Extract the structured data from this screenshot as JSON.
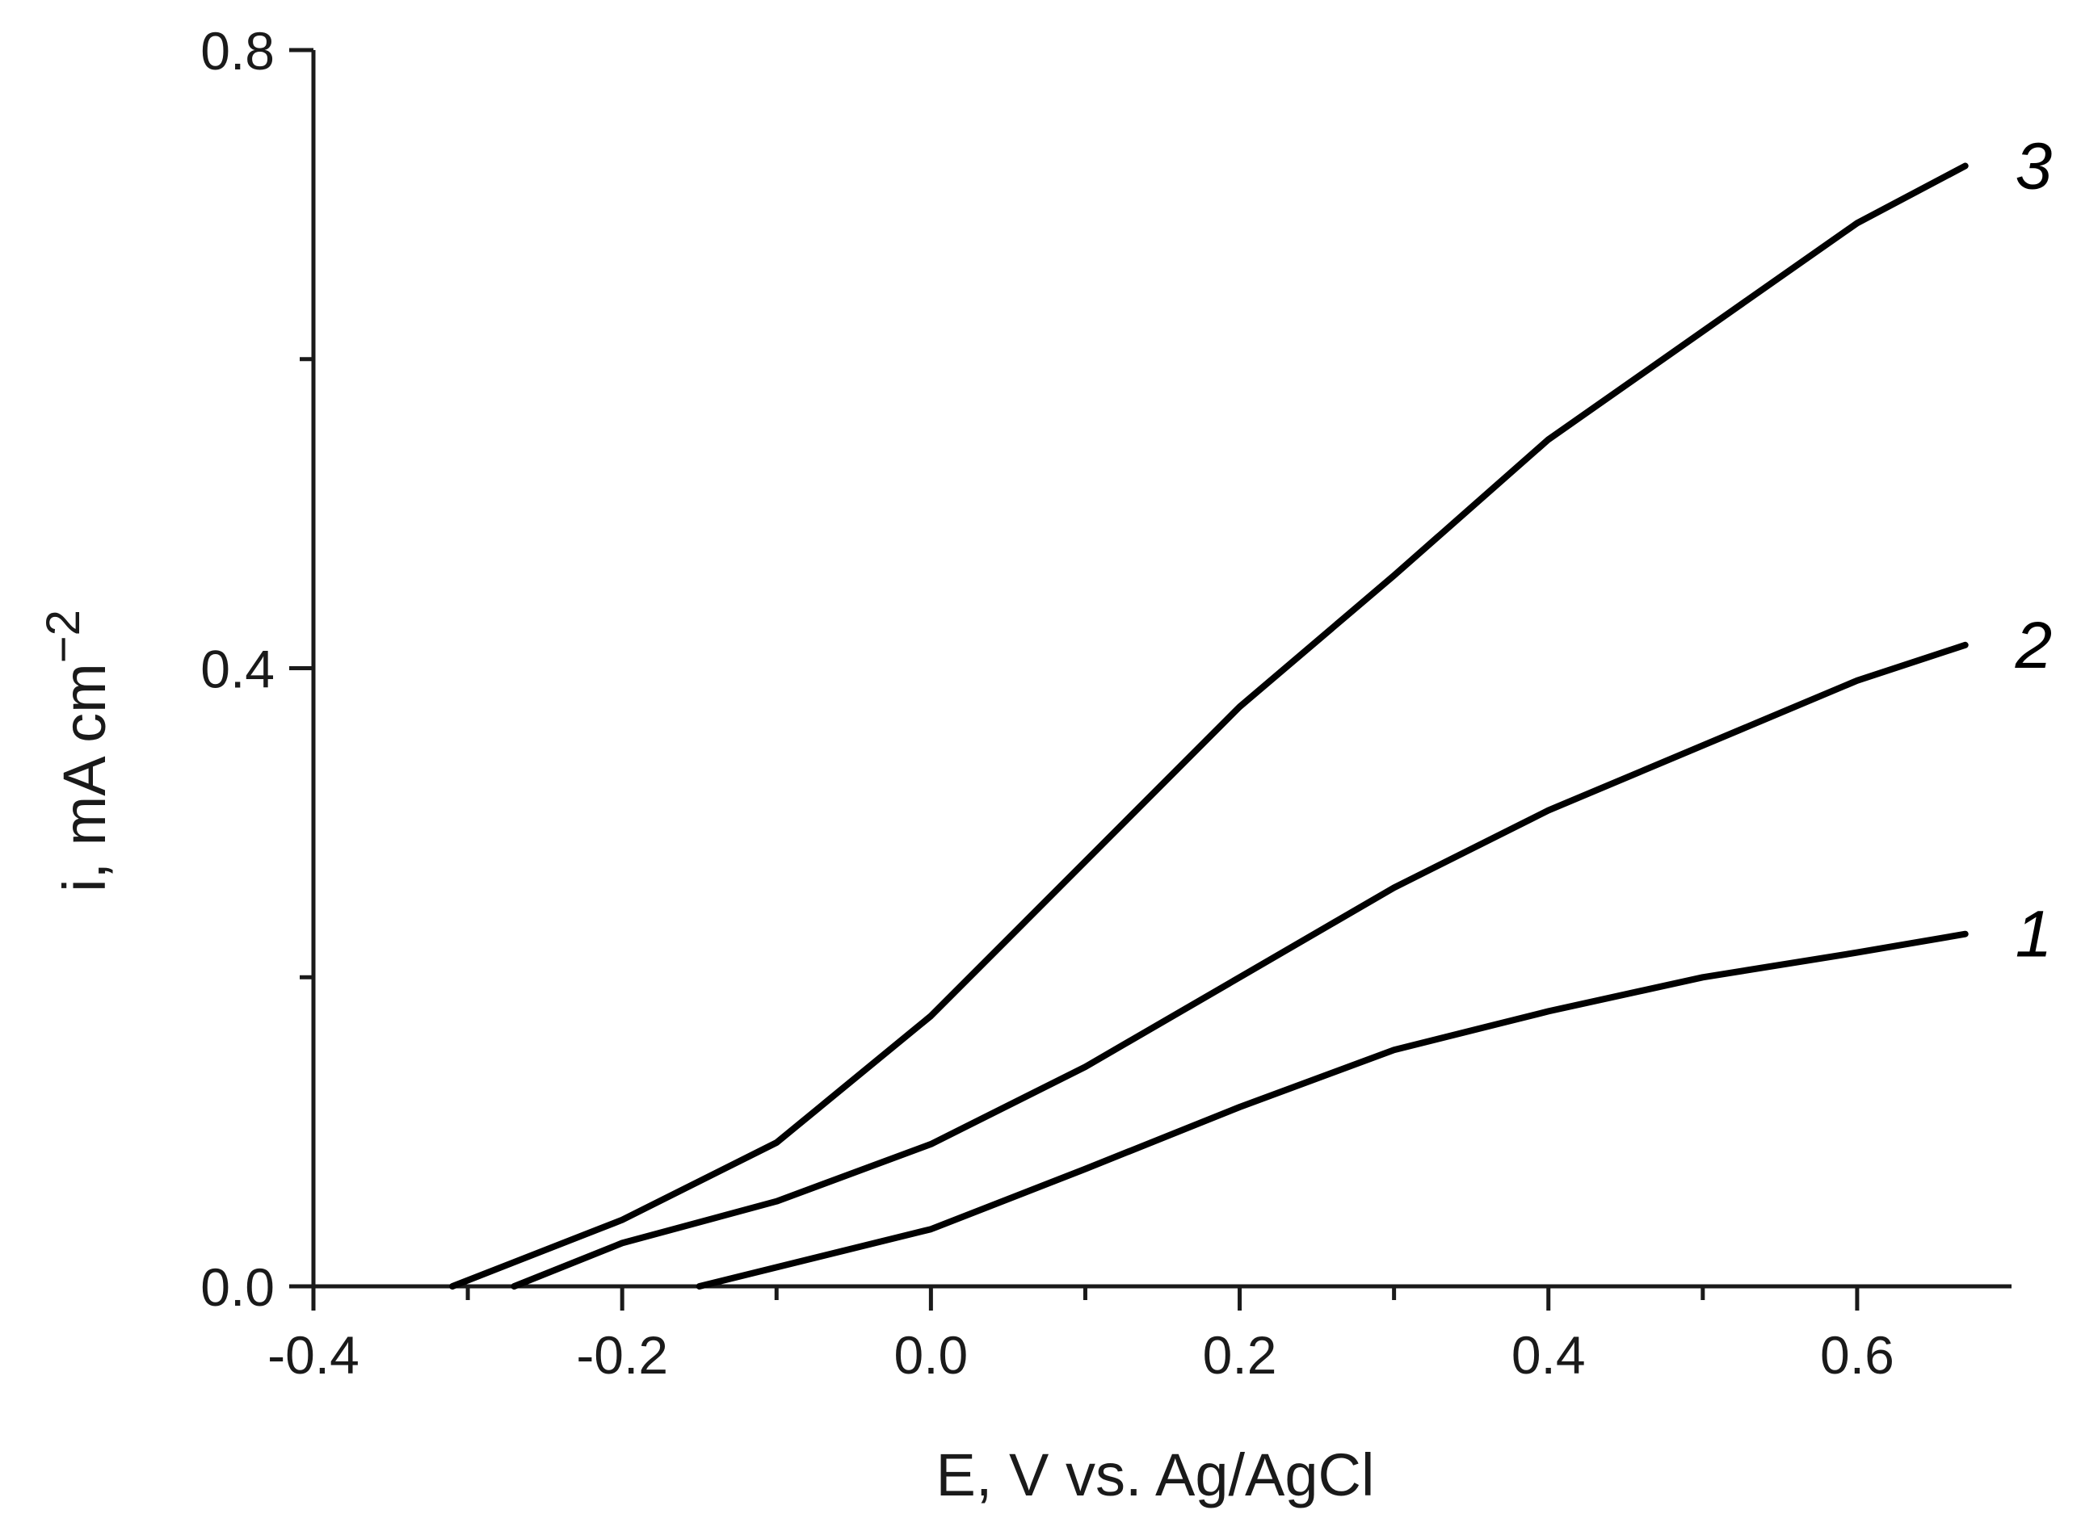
{
  "chart_data": {
    "type": "line",
    "title": "",
    "xlabel": "E, V vs. Ag/AgCl",
    "ylabel": "i, mA cm",
    "ylabel_exponent": "−2",
    "xlim": [
      -0.4,
      0.7
    ],
    "ylim": [
      0.0,
      0.8
    ],
    "x_ticks": [
      {
        "value": -0.4,
        "label": "-0.4"
      },
      {
        "value": -0.2,
        "label": "-0.2"
      },
      {
        "value": 0.0,
        "label": "0.0"
      },
      {
        "value": 0.2,
        "label": "0.2"
      },
      {
        "value": 0.4,
        "label": "0.4"
      },
      {
        "value": 0.6,
        "label": "0.6"
      }
    ],
    "x_minor_ticks": [
      -0.3,
      -0.1,
      0.1,
      0.3,
      0.5
    ],
    "y_ticks": [
      {
        "value": 0.0,
        "label": "0.0"
      },
      {
        "value": 0.4,
        "label": "0.4"
      },
      {
        "value": 0.8,
        "label": "0.8"
      }
    ],
    "y_minor_ticks": [
      0.2,
      0.6
    ],
    "grid": false,
    "legend": "inline labels at right end of each curve",
    "series": [
      {
        "name": "1",
        "x": [
          -0.15,
          0.0,
          0.1,
          0.2,
          0.3,
          0.4,
          0.5,
          0.6,
          0.67
        ],
        "y": [
          0.0,
          0.037,
          0.076,
          0.116,
          0.153,
          0.178,
          0.2,
          0.216,
          0.228
        ]
      },
      {
        "name": "2",
        "x": [
          -0.27,
          -0.2,
          -0.1,
          0.0,
          0.1,
          0.2,
          0.3,
          0.4,
          0.5,
          0.6,
          0.67
        ],
        "y": [
          0.0,
          0.028,
          0.055,
          0.092,
          0.142,
          0.2,
          0.258,
          0.308,
          0.35,
          0.392,
          0.415
        ]
      },
      {
        "name": "3",
        "x": [
          -0.31,
          -0.2,
          -0.1,
          0.0,
          0.1,
          0.2,
          0.3,
          0.4,
          0.5,
          0.6,
          0.67
        ],
        "y": [
          0.0,
          0.043,
          0.093,
          0.175,
          0.275,
          0.375,
          0.46,
          0.548,
          0.618,
          0.688,
          0.725
        ]
      }
    ]
  }
}
